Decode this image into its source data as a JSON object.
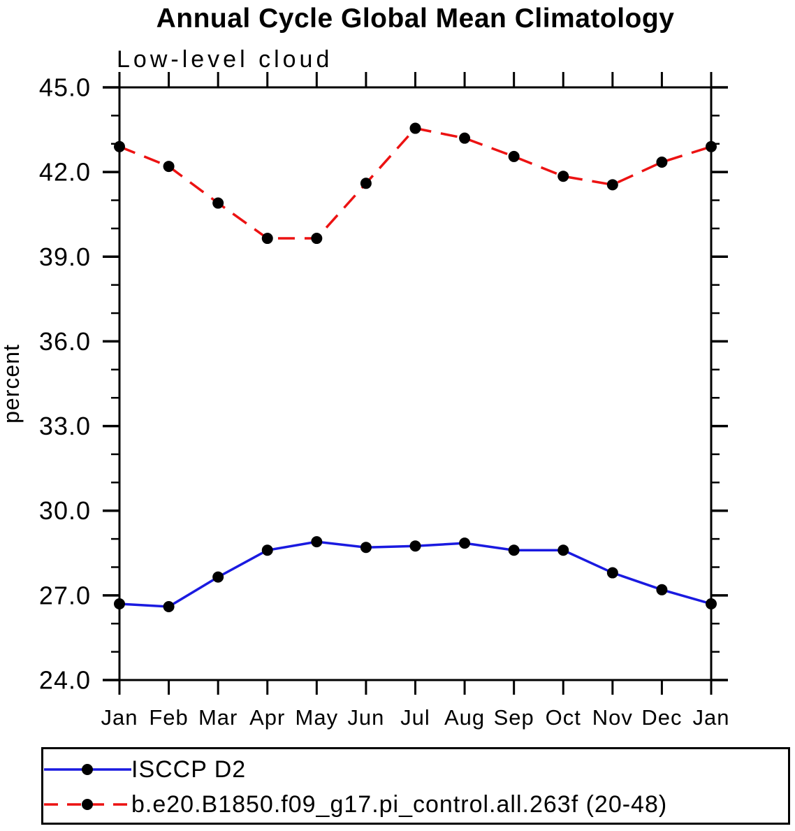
{
  "page": {
    "background_color": "#ffffff",
    "axis_color": "#000000",
    "text_color": "#000000"
  },
  "chart_data": {
    "type": "line",
    "title": "Annual Cycle Global Mean Climatology",
    "subtitle": "Low-level cloud",
    "ylabel": "percent",
    "categories": [
      "Jan",
      "Feb",
      "Mar",
      "Apr",
      "May",
      "Jun",
      "Jul",
      "Aug",
      "Sep",
      "Oct",
      "Nov",
      "Dec",
      "Jan"
    ],
    "ylim": [
      24.0,
      45.0
    ],
    "y_major_ticks": [
      24.0,
      27.0,
      30.0,
      33.0,
      36.0,
      39.0,
      42.0,
      45.0
    ],
    "y_minor_step": 1.0,
    "grid": false,
    "legend_position": "bottom-box",
    "series": [
      {
        "name": "ISCCP D2",
        "color": "#1a1ae0",
        "line_style": "solid",
        "marker": "filled-circle",
        "marker_color": "#000000",
        "values": [
          26.7,
          26.6,
          27.65,
          28.6,
          28.9,
          28.7,
          28.75,
          28.85,
          28.6,
          28.6,
          27.8,
          27.2,
          26.7
        ]
      },
      {
        "name": "b.e20.B1850.f09_g17.pi_control.all.263f (20-48)",
        "color": "#ec1212",
        "line_style": "dashed",
        "marker": "filled-circle",
        "marker_color": "#000000",
        "values": [
          42.9,
          42.2,
          40.9,
          39.65,
          39.65,
          41.6,
          43.55,
          43.2,
          42.55,
          41.85,
          41.55,
          42.35,
          42.9
        ]
      }
    ]
  }
}
